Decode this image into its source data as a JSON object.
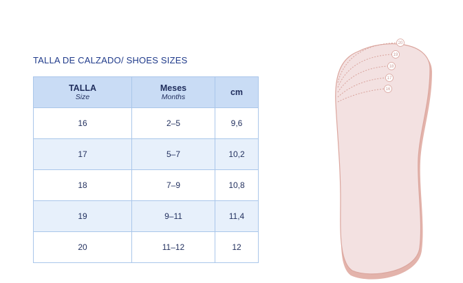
{
  "title": "TALLA DE CALZADO/ SHOES SIZES",
  "table": {
    "header": [
      {
        "label": "TALLA",
        "sublabel": "Size"
      },
      {
        "label": "Meses",
        "sublabel": "Months"
      },
      {
        "label": "cm"
      }
    ],
    "rows": [
      [
        "16",
        "2–5",
        "9,6"
      ],
      [
        "17",
        "5–7",
        "10,2"
      ],
      [
        "18",
        "7–9",
        "10,8"
      ],
      [
        "19",
        "9–11",
        "11,4"
      ],
      [
        "20",
        "11–12",
        "12"
      ]
    ]
  },
  "foot_sizes": [
    "20",
    "19",
    "18",
    "17",
    "16"
  ]
}
